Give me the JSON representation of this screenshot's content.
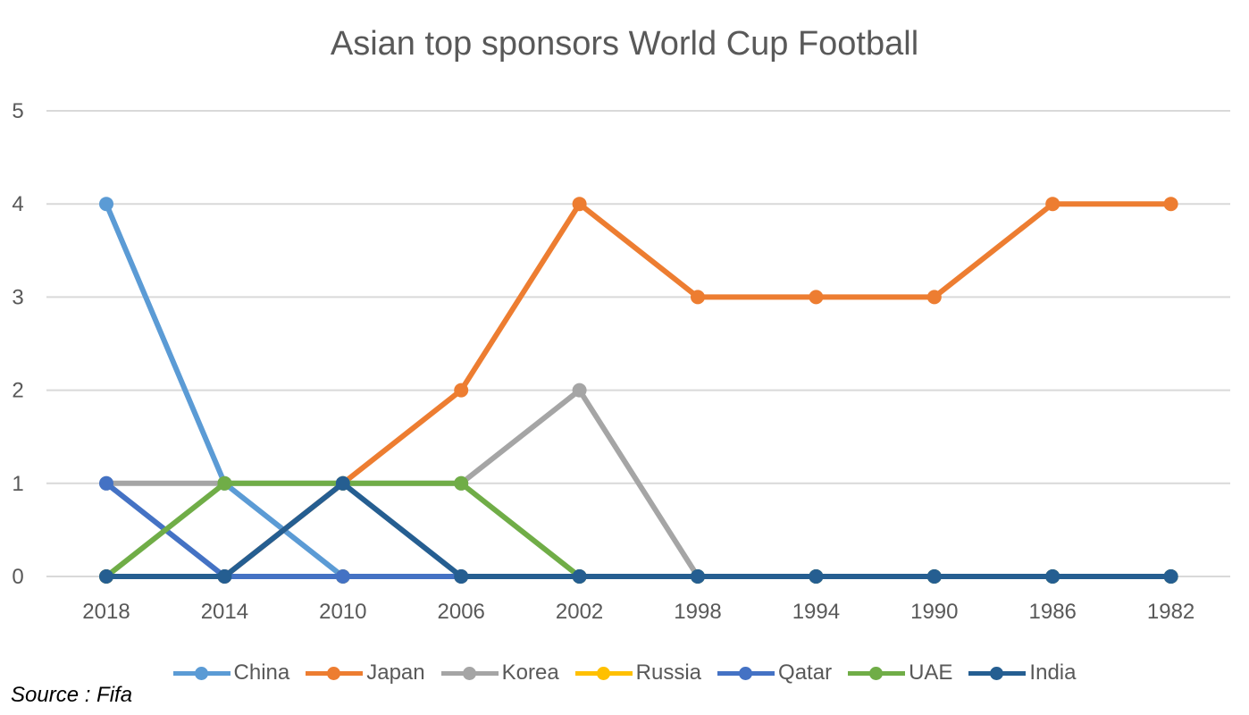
{
  "chart_data": {
    "type": "line",
    "title": "Asian top sponsors World Cup Football",
    "xlabel": "",
    "ylabel": "",
    "categories": [
      "2018",
      "2014",
      "2010",
      "2006",
      "2002",
      "1998",
      "1994",
      "1990",
      "1986",
      "1982"
    ],
    "ylim": [
      0,
      5
    ],
    "yticks": [
      "0",
      "1",
      "2",
      "3",
      "4",
      "5"
    ],
    "grid": true,
    "legend_position": "bottom",
    "series": [
      {
        "name": "China",
        "color": "#5B9BD5",
        "values": [
          4,
          1,
          0,
          0,
          0,
          0,
          0,
          0,
          0,
          0
        ]
      },
      {
        "name": "Japan",
        "color": "#ED7D31",
        "values": [
          0,
          0,
          1,
          2,
          4,
          3,
          3,
          3,
          4,
          4
        ]
      },
      {
        "name": "Korea",
        "color": "#A5A5A5",
        "values": [
          1,
          1,
          1,
          1,
          2,
          0,
          0,
          0,
          0,
          0
        ]
      },
      {
        "name": "Russia",
        "color": "#FFC000",
        "values": [
          0,
          0,
          0,
          0,
          0,
          0,
          0,
          0,
          0,
          0
        ]
      },
      {
        "name": "Qatar",
        "color": "#4472C4",
        "values": [
          1,
          0,
          0,
          0,
          0,
          0,
          0,
          0,
          0,
          0
        ]
      },
      {
        "name": "UAE",
        "color": "#70AD47",
        "values": [
          0,
          1,
          1,
          1,
          0,
          0,
          0,
          0,
          0,
          0
        ]
      },
      {
        "name": "India",
        "color": "#255E91",
        "values": [
          0,
          0,
          1,
          0,
          0,
          0,
          0,
          0,
          0,
          0
        ]
      }
    ]
  },
  "source": "Source : Fifa"
}
